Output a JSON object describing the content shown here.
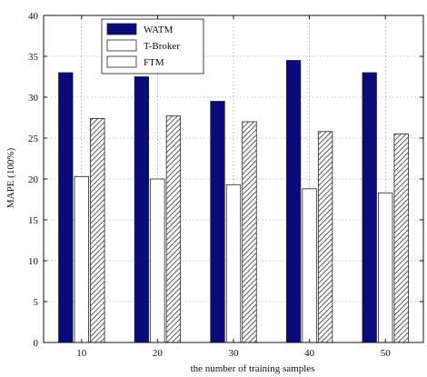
{
  "chart_data": {
    "type": "bar",
    "title": "",
    "xlabel": "the number of training samples",
    "ylabel": "MAPE (100%)",
    "categories": [
      "10",
      "20",
      "30",
      "40",
      "50"
    ],
    "ylim": [
      0,
      40
    ],
    "yticks": [
      0,
      5,
      10,
      15,
      20,
      25,
      30,
      35,
      40
    ],
    "grid": true,
    "legend_position": "top-left",
    "series": [
      {
        "name": "WATM",
        "values": [
          33.0,
          32.5,
          29.5,
          34.5,
          33.0
        ],
        "fill": "#0a0a7a"
      },
      {
        "name": "T-Broker",
        "values": [
          20.3,
          20.0,
          19.3,
          18.8,
          18.3
        ],
        "fill": "#ffffff"
      },
      {
        "name": "FTM",
        "values": [
          27.4,
          27.7,
          27.0,
          25.8,
          25.5
        ],
        "fill": "hatch"
      }
    ]
  }
}
